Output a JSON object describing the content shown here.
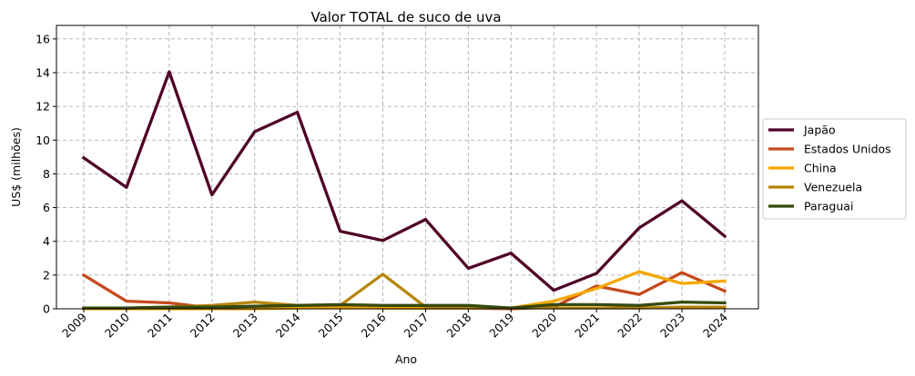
{
  "chart_data": {
    "type": "line",
    "title": "Valor TOTAL de suco de uva",
    "xlabel": "Ano",
    "ylabel": "US$ (milhões)",
    "x": [
      "2009",
      "2010",
      "2011",
      "2012",
      "2013",
      "2014",
      "2015",
      "2016",
      "2017",
      "2018",
      "2019",
      "2020",
      "2021",
      "2022",
      "2023",
      "2024"
    ],
    "ylim": [
      0,
      16.8
    ],
    "yticks": [
      "0",
      "2",
      "4",
      "6",
      "8",
      "10",
      "12",
      "14",
      "16"
    ],
    "grid": true,
    "legend_position": "right",
    "series": [
      {
        "name": "Japão",
        "color": "#4f0025",
        "values": [
          8.95,
          7.2,
          14.05,
          6.75,
          10.5,
          11.65,
          4.6,
          4.05,
          5.3,
          2.4,
          3.3,
          1.1,
          2.1,
          4.8,
          6.4,
          4.3
        ]
      },
      {
        "name": "Estados Unidos",
        "color": "#c44a1c",
        "values": [
          2.0,
          0.45,
          0.35,
          0.05,
          0.1,
          0.15,
          0.1,
          0.05,
          0.05,
          0.05,
          0.0,
          0.1,
          1.35,
          0.85,
          2.15,
          1.05
        ]
      },
      {
        "name": "China",
        "color": "#f5a800",
        "values": [
          0.0,
          0.0,
          0.0,
          0.0,
          0.0,
          0.05,
          0.05,
          0.05,
          0.05,
          0.05,
          0.05,
          0.45,
          1.2,
          2.2,
          1.5,
          1.65
        ]
      },
      {
        "name": "Venezuela",
        "color": "#b8860b",
        "values": [
          0.05,
          0.05,
          0.1,
          0.2,
          0.4,
          0.2,
          0.2,
          2.05,
          0.1,
          0.1,
          0.05,
          0.05,
          0.05,
          0.05,
          0.1,
          0.1
        ]
      },
      {
        "name": "Paraguai",
        "color": "#354a0e",
        "values": [
          0.05,
          0.05,
          0.1,
          0.1,
          0.15,
          0.2,
          0.25,
          0.2,
          0.2,
          0.2,
          0.05,
          0.25,
          0.25,
          0.2,
          0.4,
          0.35
        ]
      }
    ]
  }
}
